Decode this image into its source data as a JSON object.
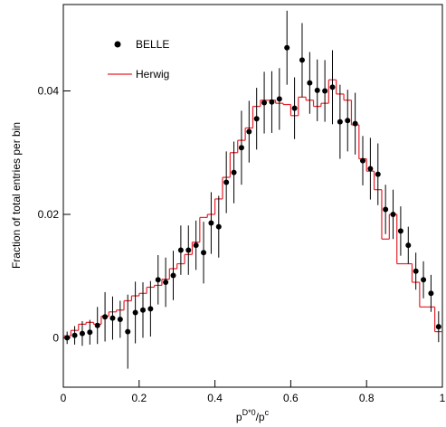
{
  "chart_data": {
    "type": "scatter",
    "y_label": "Fraction of total entries per bin",
    "x_label_parts": [
      "p",
      "D*0",
      "/p",
      "c"
    ],
    "xlim": [
      0,
      1
    ],
    "xticks": [
      0,
      0.2,
      0.4,
      0.6,
      0.8,
      1
    ],
    "ylim": [
      -0.008,
      0.054
    ],
    "yticks": [
      0,
      0.02,
      0.04
    ],
    "legend": "top-left",
    "series": [
      {
        "name": "BELLE",
        "color": "#000000",
        "x": [
          0.01,
          0.03,
          0.05,
          0.07,
          0.09,
          0.11,
          0.13,
          0.15,
          0.17,
          0.19,
          0.21,
          0.23,
          0.25,
          0.27,
          0.29,
          0.31,
          0.33,
          0.35,
          0.37,
          0.39,
          0.41,
          0.43,
          0.45,
          0.47,
          0.49,
          0.51,
          0.53,
          0.55,
          0.57,
          0.59,
          0.61,
          0.63,
          0.65,
          0.67,
          0.69,
          0.71,
          0.73,
          0.75,
          0.77,
          0.79,
          0.81,
          0.83,
          0.85,
          0.87,
          0.89,
          0.91,
          0.93,
          0.95,
          0.97,
          0.99
        ],
        "values": [
          0.0,
          0.0004,
          0.0007,
          0.0009,
          0.002,
          0.0034,
          0.0032,
          0.003,
          0.001,
          0.0041,
          0.0045,
          0.0047,
          0.0094,
          0.009,
          0.0101,
          0.0142,
          0.0142,
          0.015,
          0.0138,
          0.0186,
          0.018,
          0.0252,
          0.0268,
          0.0308,
          0.0334,
          0.0355,
          0.0381,
          0.0382,
          0.0387,
          0.047,
          0.0372,
          0.045,
          0.0413,
          0.0401,
          0.04,
          0.0406,
          0.035,
          0.0352,
          0.0347,
          0.0287,
          0.0274,
          0.0265,
          0.0208,
          0.02,
          0.0173,
          0.015,
          0.0108,
          0.0094,
          0.0072,
          0.0018
        ],
        "errors": [
          0.001,
          0.0015,
          0.002,
          0.002,
          0.003,
          0.004,
          0.0035,
          0.003,
          0.006,
          0.005,
          0.0045,
          0.0045,
          0.004,
          0.004,
          0.004,
          0.004,
          0.004,
          0.004,
          0.005,
          0.005,
          0.005,
          0.005,
          0.005,
          0.006,
          0.005,
          0.005,
          0.005,
          0.005,
          0.005,
          0.006,
          0.005,
          0.006,
          0.005,
          0.005,
          0.005,
          0.006,
          0.006,
          0.005,
          0.005,
          0.004,
          0.005,
          0.005,
          0.004,
          0.004,
          0.004,
          0.003,
          0.003,
          0.003,
          0.003,
          0.0025
        ]
      }
    ],
    "histogram": {
      "name": "Herwig",
      "color": "#e8202a",
      "bins": [
        0,
        0.02,
        0.04,
        0.06,
        0.08,
        0.1,
        0.12,
        0.14,
        0.16,
        0.18,
        0.2,
        0.22,
        0.24,
        0.26,
        0.28,
        0.3,
        0.32,
        0.34,
        0.36,
        0.38,
        0.4,
        0.42,
        0.44,
        0.46,
        0.48,
        0.5,
        0.52,
        0.54,
        0.56,
        0.58,
        0.6,
        0.62,
        0.64,
        0.66,
        0.68,
        0.7,
        0.72,
        0.74,
        0.76,
        0.78,
        0.8,
        0.82,
        0.84,
        0.86,
        0.88,
        0.9,
        0.92,
        0.94,
        0.96,
        0.98,
        1
      ],
      "counts": [
        0.0003,
        0.0012,
        0.0022,
        0.0025,
        0.0022,
        0.0035,
        0.0042,
        0.0045,
        0.006,
        0.0068,
        0.0072,
        0.0082,
        0.0085,
        0.0095,
        0.0112,
        0.012,
        0.0135,
        0.0155,
        0.0195,
        0.02,
        0.0225,
        0.026,
        0.03,
        0.032,
        0.034,
        0.0375,
        0.0385,
        0.0385,
        0.038,
        0.0378,
        0.036,
        0.039,
        0.0385,
        0.0375,
        0.038,
        0.0418,
        0.0395,
        0.0385,
        0.0345,
        0.029,
        0.027,
        0.024,
        0.016,
        0.02,
        0.012,
        0.012,
        0.009,
        0.005,
        0.005,
        0.001
      ]
    }
  }
}
